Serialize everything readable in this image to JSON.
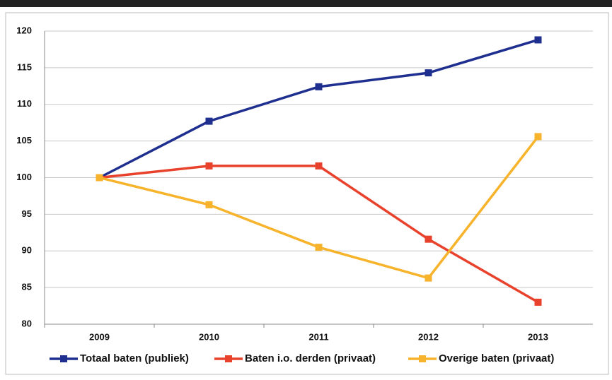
{
  "chart_data": {
    "type": "line",
    "categories": [
      "2009",
      "2010",
      "2011",
      "2012",
      "2013"
    ],
    "series": [
      {
        "name": "Totaal baten (publiek)",
        "color": "#1f2f8f",
        "values": [
          100,
          107.7,
          112.4,
          114.3,
          118.8
        ]
      },
      {
        "name": "Baten i.o. derden (privaat)",
        "color": "#e8412c",
        "values": [
          100,
          101.6,
          101.6,
          91.6,
          83
        ]
      },
      {
        "name": "Overige baten (privaat)",
        "color": "#f7b32b",
        "values": [
          100,
          96.3,
          90.5,
          86.3,
          105.6
        ]
      }
    ],
    "ylim": [
      80,
      120
    ],
    "yticks": [
      80,
      85,
      90,
      95,
      100,
      105,
      110,
      115,
      120
    ],
    "grid": true,
    "legend": "bottom"
  }
}
